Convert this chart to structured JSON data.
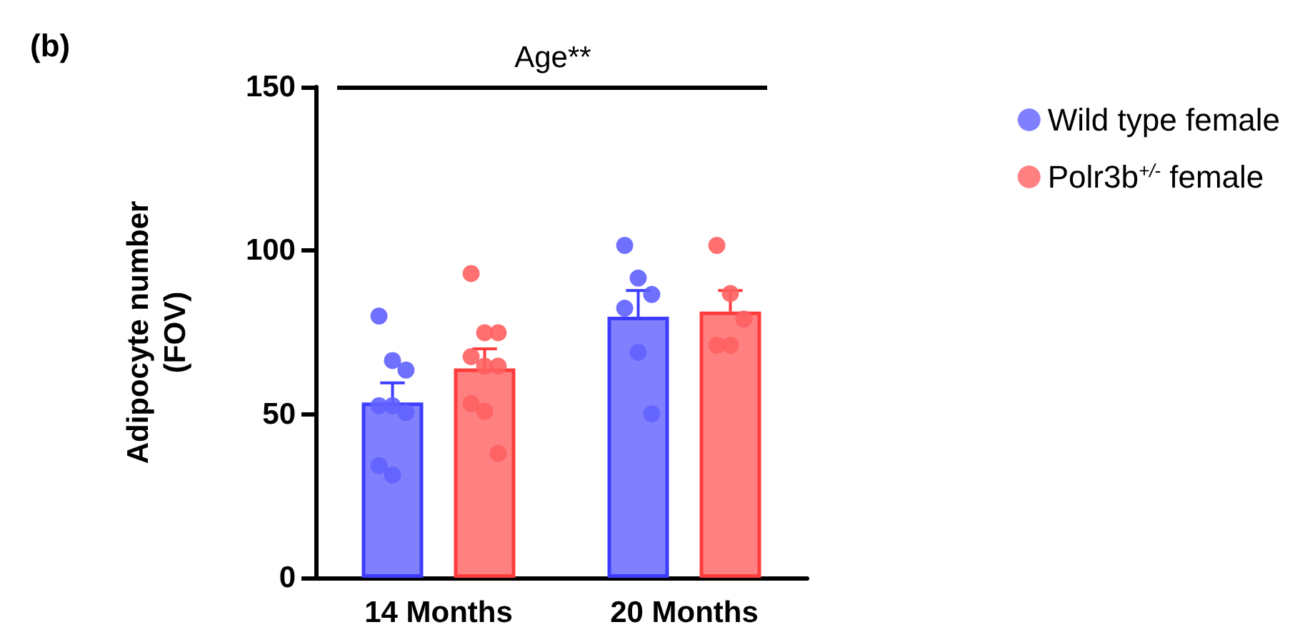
{
  "chart_data": {
    "type": "bar",
    "title": "(b)",
    "ylabel": "Adipocyte number\n(FOV)",
    "categories": [
      "14 Months",
      "20 Months"
    ],
    "ylim": [
      0,
      150
    ],
    "yticks": [
      0,
      50,
      100,
      150
    ],
    "grid": false,
    "legend": "top right",
    "annotations": [
      "Age**"
    ],
    "series": [
      {
        "name": "Wild type female",
        "color": "#8080ff",
        "values": [
          53.6,
          79.8
        ],
        "errors": [
          [
            53.6,
            59.6
          ],
          [
            79.8,
            87.8
          ]
        ]
      },
      {
        "name": "Polr3b$^{+/-}$ female",
        "color": "#ff8080",
        "values": [
          64,
          81.4
        ],
        "errors": [
          [
            64,
            70
          ],
          [
            81.4,
            87.8
          ]
        ]
      },
      {
        "type": "scatter",
        "color": "#6060ff",
        "x": [
          "14 Months",
          "14 Months",
          "14 Months",
          "14 Months",
          "14 Months",
          "14 Months",
          "14 Months",
          "14 Months",
          "20 Months",
          "20 Months",
          "20 Months",
          "20 Months",
          "20 Months",
          "20 Months"
        ],
        "values": [
          80,
          66.4,
          63.5,
          52.6,
          52.6,
          50.5,
          34.3,
          31.4,
          101.6,
          91.6,
          86.6,
          82.4,
          68.9,
          50.1
        ]
      },
      {
        "type": "scatter",
        "color": "#ff6060",
        "x": [
          "14 Months",
          "14 Months",
          "14 Months",
          "14 Months",
          "14 Months",
          "14 Months",
          "14 Months",
          "14 Months",
          "14 Months",
          "20 Months",
          "20 Months",
          "20 Months",
          "20 Months",
          "20 Months"
        ],
        "values": [
          93,
          74.9,
          74.9,
          67.6,
          64.7,
          64.7,
          53.3,
          50.9,
          38,
          101.6,
          86.9,
          79.1,
          71.1,
          71.1
        ]
      }
    ]
  }
}
